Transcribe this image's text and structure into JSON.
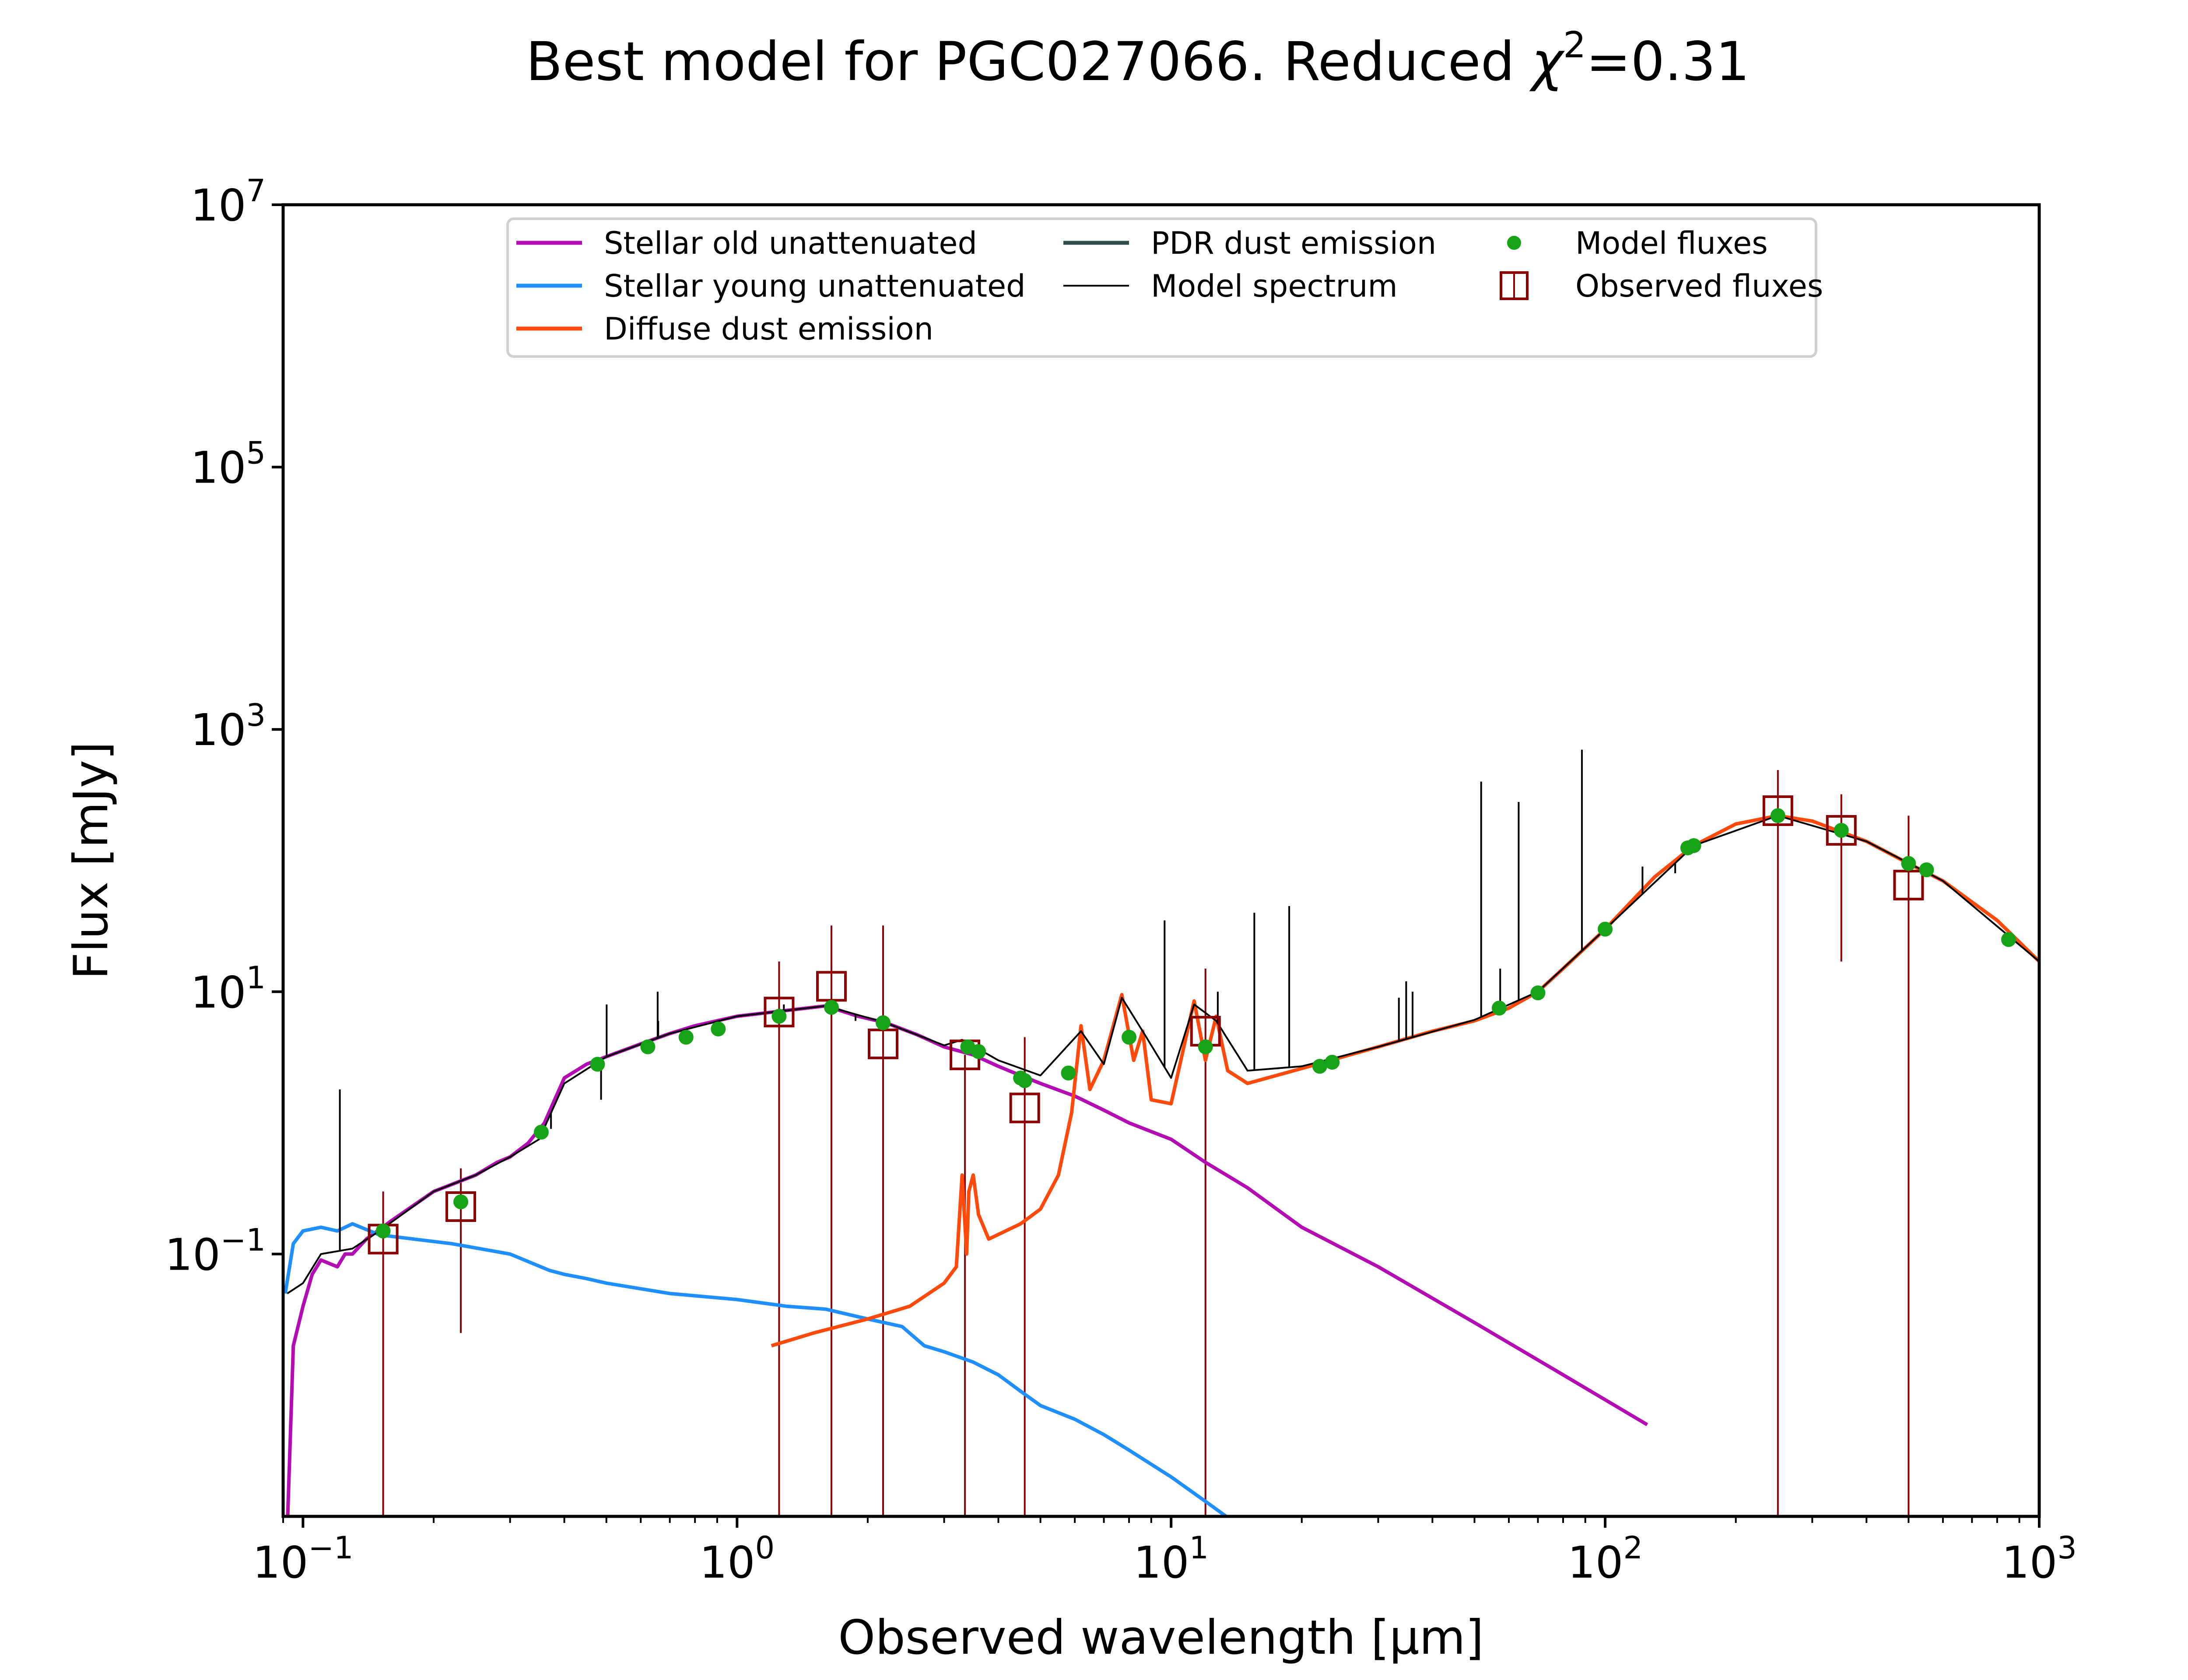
{
  "chart_data": {
    "type": "line",
    "title_main": "Best model for PGC027066. Reduced ",
    "title_chi": "χ",
    "title_exp": "2",
    "title_value": "=0.31",
    "xlabel": "Observed wavelength [μm]",
    "ylabel": "Flux [mJy]",
    "x_scale": "log",
    "y_scale": "log",
    "xlim": [
      0.09,
      1000
    ],
    "ylim": [
      0.001,
      10000000
    ],
    "grid": false,
    "legend_position": "top",
    "x_ticks": [
      {
        "value": 0.1,
        "base": "10",
        "exp": "−1"
      },
      {
        "value": 1,
        "base": "10",
        "exp": "0"
      },
      {
        "value": 10,
        "base": "10",
        "exp": "1"
      },
      {
        "value": 100,
        "base": "10",
        "exp": "2"
      },
      {
        "value": 1000,
        "base": "10",
        "exp": "3"
      }
    ],
    "y_ticks": [
      {
        "value": 0.1,
        "base": "10",
        "exp": "−1"
      },
      {
        "value": 10,
        "base": "10",
        "exp": "1"
      },
      {
        "value": 1000,
        "base": "10",
        "exp": "3"
      },
      {
        "value": 100000,
        "base": "10",
        "exp": "5"
      },
      {
        "value": 10000000,
        "base": "10",
        "exp": "7"
      }
    ],
    "legend": [
      {
        "label": "Stellar old unattenuated",
        "color": "#b30cb3",
        "kind": "line"
      },
      {
        "label": "Stellar young unattenuated",
        "color": "#1f8fff",
        "kind": "line"
      },
      {
        "label": "Diffuse dust emission",
        "color": "#ff4a0c",
        "kind": "line"
      },
      {
        "label": "PDR dust emission",
        "color": "#2f4f4f",
        "kind": "line"
      },
      {
        "label": "Model spectrum",
        "color": "#000000",
        "kind": "thin-line"
      },
      {
        "label": "Model fluxes",
        "color": "#17a317",
        "kind": "dot"
      },
      {
        "label": "Observed fluxes",
        "color": "#8b0000",
        "kind": "square"
      }
    ],
    "series": [
      {
        "label_ref": 0,
        "color": "#b30cb3",
        "points": [
          [
            0.092,
            0.0008
          ],
          [
            0.095,
            0.02
          ],
          [
            0.1,
            0.04
          ],
          [
            0.105,
            0.07
          ],
          [
            0.11,
            0.09
          ],
          [
            0.12,
            0.08
          ],
          [
            0.125,
            0.1
          ],
          [
            0.13,
            0.1
          ],
          [
            0.14,
            0.13
          ],
          [
            0.16,
            0.18
          ],
          [
            0.2,
            0.3
          ],
          [
            0.25,
            0.4
          ],
          [
            0.28,
            0.5
          ],
          [
            0.3,
            0.55
          ],
          [
            0.33,
            0.7
          ],
          [
            0.36,
            1.0
          ],
          [
            0.38,
            1.5
          ],
          [
            0.4,
            2.2
          ],
          [
            0.45,
            2.8
          ],
          [
            0.5,
            3.2
          ],
          [
            0.6,
            4.0
          ],
          [
            0.7,
            4.8
          ],
          [
            0.8,
            5.5
          ],
          [
            1.0,
            6.5
          ],
          [
            1.3,
            7.2
          ],
          [
            1.6,
            7.8
          ],
          [
            1.9,
            6.5
          ],
          [
            2.2,
            5.8
          ],
          [
            2.6,
            4.7
          ],
          [
            3.0,
            3.8
          ],
          [
            3.5,
            3.3
          ],
          [
            4.0,
            2.7
          ],
          [
            4.5,
            2.3
          ],
          [
            5.0,
            2.0
          ],
          [
            6.0,
            1.6
          ],
          [
            7.0,
            1.25
          ],
          [
            8.0,
            1.0
          ],
          [
            10,
            0.75
          ],
          [
            12,
            0.5
          ],
          [
            15,
            0.32
          ],
          [
            20,
            0.16
          ],
          [
            30,
            0.08
          ],
          [
            50,
            0.03
          ],
          [
            80,
            0.012
          ],
          [
            125,
            0.005
          ]
        ]
      },
      {
        "label_ref": 1,
        "color": "#1f8fff",
        "points": [
          [
            0.091,
            0.05
          ],
          [
            0.095,
            0.12
          ],
          [
            0.1,
            0.15
          ],
          [
            0.11,
            0.16
          ],
          [
            0.12,
            0.15
          ],
          [
            0.13,
            0.17
          ],
          [
            0.15,
            0.14
          ],
          [
            0.18,
            0.13
          ],
          [
            0.22,
            0.12
          ],
          [
            0.3,
            0.1
          ],
          [
            0.37,
            0.075
          ],
          [
            0.4,
            0.07
          ],
          [
            0.45,
            0.065
          ],
          [
            0.5,
            0.06
          ],
          [
            0.7,
            0.05
          ],
          [
            1.0,
            0.045
          ],
          [
            1.3,
            0.04
          ],
          [
            1.6,
            0.038
          ],
          [
            2.0,
            0.032
          ],
          [
            2.4,
            0.028
          ],
          [
            2.7,
            0.02
          ],
          [
            3.0,
            0.018
          ],
          [
            3.5,
            0.015
          ],
          [
            4.0,
            0.012
          ],
          [
            4.5,
            0.009
          ],
          [
            5.0,
            0.007
          ],
          [
            6.0,
            0.0055
          ],
          [
            7.0,
            0.0042
          ],
          [
            8.0,
            0.0032
          ],
          [
            10,
            0.002
          ],
          [
            12,
            0.0013
          ],
          [
            14,
            0.0009
          ]
        ]
      },
      {
        "label_ref": 2,
        "color": "#ff4a0c",
        "points": [
          [
            1.2,
            0.02
          ],
          [
            1.5,
            0.025
          ],
          [
            2.0,
            0.032
          ],
          [
            2.5,
            0.04
          ],
          [
            3.0,
            0.06
          ],
          [
            3.2,
            0.08
          ],
          [
            3.3,
            0.4
          ],
          [
            3.38,
            0.1
          ],
          [
            3.42,
            0.3
          ],
          [
            3.5,
            0.4
          ],
          [
            3.6,
            0.2
          ],
          [
            3.8,
            0.13
          ],
          [
            4.5,
            0.17
          ],
          [
            5.0,
            0.22
          ],
          [
            5.5,
            0.4
          ],
          [
            5.9,
            1.2
          ],
          [
            6.2,
            5.5
          ],
          [
            6.5,
            1.8
          ],
          [
            7.0,
            3.0
          ],
          [
            7.7,
            9.5
          ],
          [
            8.2,
            3.0
          ],
          [
            8.6,
            5.0
          ],
          [
            9.0,
            1.5
          ],
          [
            10,
            1.4
          ],
          [
            11.3,
            8.5
          ],
          [
            12.0,
            3.0
          ],
          [
            12.7,
            6.5
          ],
          [
            13.5,
            2.5
          ],
          [
            15,
            2.0
          ],
          [
            20,
            2.6
          ],
          [
            30,
            3.8
          ],
          [
            40,
            5.0
          ],
          [
            50,
            6.0
          ],
          [
            60,
            7.5
          ],
          [
            70,
            10
          ],
          [
            80,
            15
          ],
          [
            100,
            30
          ],
          [
            130,
            75
          ],
          [
            160,
            130
          ],
          [
            200,
            190
          ],
          [
            250,
            220
          ],
          [
            300,
            200
          ],
          [
            400,
            140
          ],
          [
            500,
            95
          ],
          [
            600,
            70
          ],
          [
            800,
            35
          ],
          [
            1000,
            17
          ]
        ]
      },
      {
        "label_ref": 4,
        "color": "#000000",
        "points": [
          [
            0.092,
            0.05
          ],
          [
            0.1,
            0.06
          ],
          [
            0.11,
            0.1
          ],
          [
            0.13,
            0.11
          ],
          [
            0.15,
            0.15
          ],
          [
            0.2,
            0.3
          ],
          [
            0.25,
            0.4
          ],
          [
            0.3,
            0.55
          ],
          [
            0.35,
            0.75
          ],
          [
            0.4,
            2.0
          ],
          [
            0.5,
            3.2
          ],
          [
            0.7,
            4.8
          ],
          [
            1.0,
            6.5
          ],
          [
            1.6,
            7.8
          ],
          [
            2.2,
            5.8
          ],
          [
            3.0,
            3.9
          ],
          [
            3.3,
            4.3
          ],
          [
            4.0,
            3.0
          ],
          [
            5.0,
            2.3
          ],
          [
            6.2,
            5.0
          ],
          [
            7.0,
            2.8
          ],
          [
            7.7,
            9.0
          ],
          [
            8.6,
            5.0
          ],
          [
            10,
            2.2
          ],
          [
            11.3,
            8.0
          ],
          [
            12.7,
            6.0
          ],
          [
            15,
            2.5
          ],
          [
            20,
            2.7
          ],
          [
            30,
            3.8
          ],
          [
            50,
            6.1
          ],
          [
            70,
            10
          ],
          [
            100,
            30
          ],
          [
            160,
            130
          ],
          [
            250,
            220
          ],
          [
            400,
            140
          ],
          [
            600,
            70
          ],
          [
            1000,
            17
          ]
        ]
      }
    ],
    "emission_lines": [
      [
        0.1216,
        1.8
      ],
      [
        0.3727,
        0.9
      ],
      [
        0.4861,
        1.5
      ],
      [
        0.5007,
        8
      ],
      [
        0.6563,
        10
      ],
      [
        0.6583,
        6
      ],
      [
        1.282,
        8
      ],
      [
        1.875,
        6
      ],
      [
        9.66,
        35
      ],
      [
        12.81,
        10
      ],
      [
        15.55,
        40
      ],
      [
        18.71,
        45
      ],
      [
        33.48,
        9
      ],
      [
        34.8,
        12
      ],
      [
        36.0,
        10
      ],
      [
        51.8,
        400
      ],
      [
        57.3,
        15
      ],
      [
        63.2,
        280
      ],
      [
        88.4,
        700
      ],
      [
        121.9,
        90
      ],
      [
        145,
        80
      ],
      [
        157.7,
        140
      ]
    ],
    "model_fluxes": [
      [
        0.153,
        0.15
      ],
      [
        0.231,
        0.25
      ],
      [
        0.354,
        0.85
      ],
      [
        0.477,
        2.8
      ],
      [
        0.623,
        3.8
      ],
      [
        0.763,
        4.5
      ],
      [
        0.905,
        5.2
      ],
      [
        1.25,
        6.5
      ],
      [
        1.65,
        7.6
      ],
      [
        2.17,
        5.8
      ],
      [
        3.4,
        3.8
      ],
      [
        3.6,
        3.5
      ],
      [
        4.5,
        2.2
      ],
      [
        4.6,
        2.1
      ],
      [
        5.8,
        2.4
      ],
      [
        8.0,
        4.5
      ],
      [
        12,
        3.8
      ],
      [
        22,
        2.7
      ],
      [
        23.5,
        2.9
      ],
      [
        57,
        7.5
      ],
      [
        70,
        9.8
      ],
      [
        100,
        30
      ],
      [
        155,
        125
      ],
      [
        160,
        130
      ],
      [
        250,
        220
      ],
      [
        350,
        170
      ],
      [
        500,
        95
      ],
      [
        550,
        85
      ],
      [
        850,
        25
      ]
    ],
    "observed_fluxes": [
      {
        "x": 0.153,
        "y": 0.13,
        "lo": 0.001,
        "hi": 0.3
      },
      {
        "x": 0.231,
        "y": 0.23,
        "lo": 0.025,
        "hi": 0.45
      },
      {
        "x": 1.25,
        "y": 7.0,
        "lo": 0.001,
        "hi": 17
      },
      {
        "x": 1.65,
        "y": 11,
        "lo": 0.001,
        "hi": 32
      },
      {
        "x": 2.17,
        "y": 4.0,
        "lo": 0.001,
        "hi": 32
      },
      {
        "x": 3.35,
        "y": 3.3,
        "lo": 0.001,
        "hi": 3.3
      },
      {
        "x": 4.6,
        "y": 1.3,
        "lo": 0.001,
        "hi": 4.5
      },
      {
        "x": 12.0,
        "y": 5.0,
        "lo": 0.001,
        "hi": 15
      },
      {
        "x": 250,
        "y": 240,
        "lo": 0.001,
        "hi": 490
      },
      {
        "x": 350,
        "y": 170,
        "lo": 17,
        "hi": 320
      },
      {
        "x": 500,
        "y": 65,
        "lo": 0.001,
        "hi": 220
      }
    ]
  }
}
